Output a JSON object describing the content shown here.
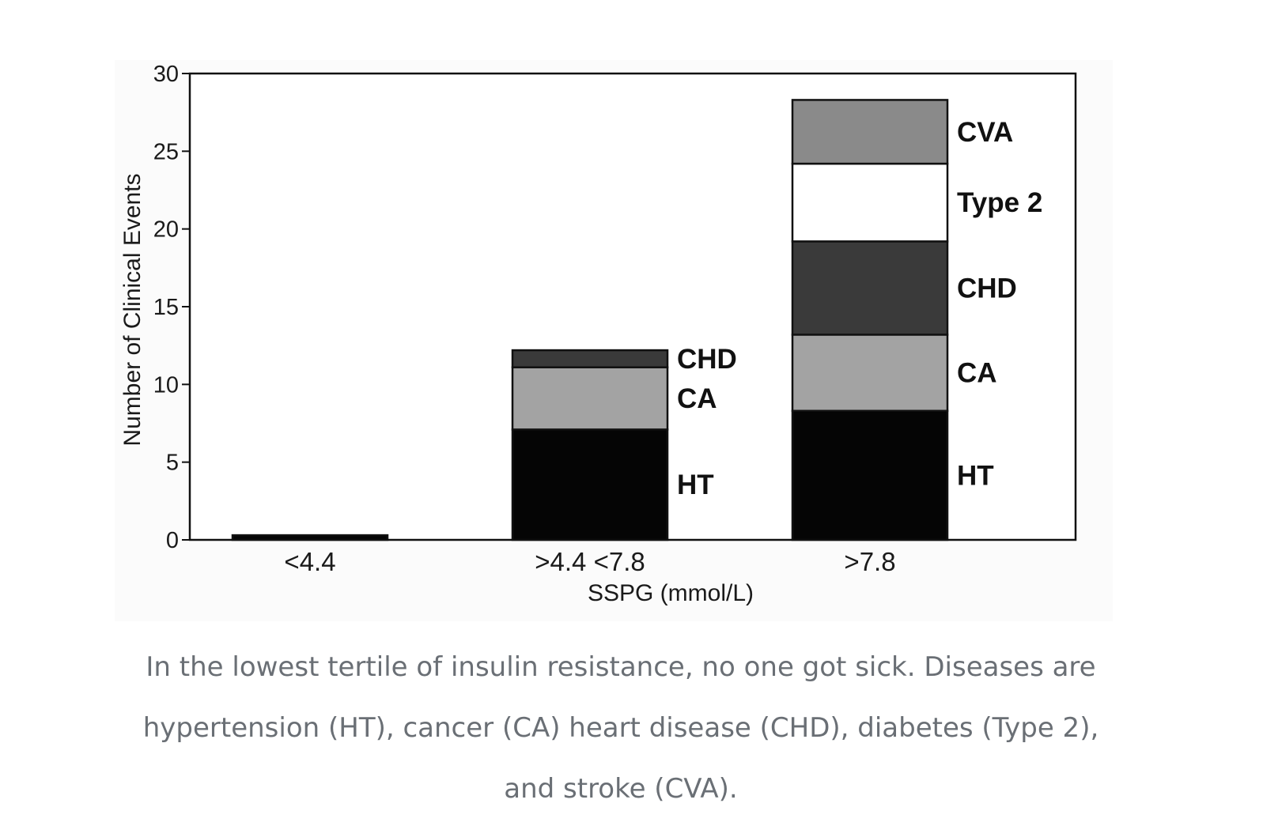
{
  "chart_data": {
    "type": "bar",
    "stacked": true,
    "xlabel": "SSPG (mmol/L)",
    "ylabel": "Number of Clinical Events",
    "ylim": [
      0,
      30
    ],
    "yticks": [
      0,
      5,
      10,
      15,
      20,
      25,
      30
    ],
    "categories": [
      "<4.4",
      ">4.4 <7.8",
      ">7.8"
    ],
    "series": [
      {
        "name": "HT",
        "color": "#050505",
        "values": [
          0.3,
          7.1,
          8.3
        ]
      },
      {
        "name": "CA",
        "color": "#a3a3a3",
        "values": [
          0,
          4.0,
          4.9
        ]
      },
      {
        "name": "CHD",
        "color": "#3a3a3a",
        "values": [
          0,
          1.1,
          6.0
        ]
      },
      {
        "name": "Type 2",
        "color": "#ffffff",
        "values": [
          0,
          0,
          5.0
        ]
      },
      {
        "name": "CVA",
        "color": "#8a8a8a",
        "values": [
          0,
          0,
          4.1
        ]
      }
    ],
    "grid": false,
    "legend": "inline labels beside bars"
  },
  "caption": {
    "text": "In the lowest tertile of insulin resistance, no one got sick. Diseases are hypertension (HT), cancer (CA) heart disease (CHD), diabetes (Type 2), and stroke (CVA)."
  }
}
